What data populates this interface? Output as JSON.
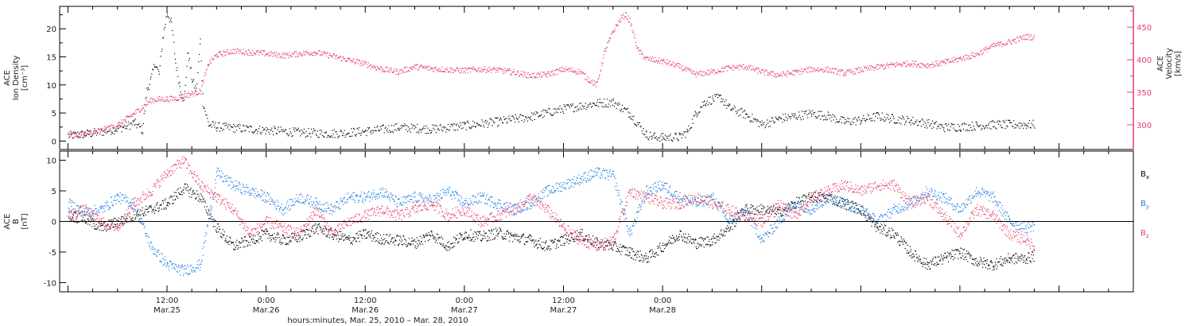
{
  "chart_data": [
    {
      "type": "scatter",
      "panel": "top",
      "ylabel_lines": [
        "ACE",
        "Ion Density",
        "[cm⁻³]"
      ],
      "y2label_lines": [
        "ACE",
        "Velocity",
        "[km/s]"
      ],
      "ylim": [
        -1.5,
        24
      ],
      "yticks": [
        0,
        5,
        10,
        15,
        20
      ],
      "y2lim": [
        262,
        482
      ],
      "y2ticks": [
        300,
        350,
        400,
        450
      ],
      "y2_color": "#e83e6c",
      "grid": false,
      "series": [
        {
          "color": "#000000",
          "axis": "left",
          "x_hours": [
            0,
            2,
            4,
            6,
            7,
            8,
            9,
            9.5,
            10,
            10.5,
            11,
            11.5,
            12,
            12.5,
            13,
            13.5,
            14,
            14.5,
            15,
            15.5,
            16,
            16.3,
            17,
            18,
            20,
            24,
            28,
            32,
            36,
            40,
            44,
            48,
            52,
            56,
            60,
            64,
            66,
            68,
            70,
            71,
            72,
            74,
            75,
            76,
            77,
            78,
            79,
            80,
            82,
            84,
            86,
            88,
            90,
            92,
            94,
            96,
            98,
            100,
            102,
            104,
            106,
            108,
            110,
            112,
            114,
            116,
            117
          ],
          "y": [
            1,
            1.3,
            1.7,
            2.3,
            2.7,
            3.3,
            2,
            9,
            11,
            14,
            12,
            19,
            23,
            21,
            14,
            10,
            7,
            16,
            11,
            9,
            18,
            7,
            3,
            2.6,
            2.4,
            2,
            1.6,
            1.4,
            1.8,
            2.5,
            2.2,
            2.8,
            3.5,
            4.4,
            5.8,
            6.8,
            7,
            5,
            1.2,
            0.8,
            0.7,
            0.8,
            1.8,
            5,
            7,
            7.5,
            7.8,
            6,
            4.8,
            3,
            4,
            4.5,
            5,
            4.5,
            3.5,
            3.8,
            4.5,
            4,
            3.7,
            3.2,
            2.5,
            2.6,
            2.8,
            3,
            3,
            3,
            3
          ]
        },
        {
          "color": "#e83e6c",
          "axis": "right",
          "x_hours": [
            0,
            2,
            4,
            6,
            8,
            10,
            11,
            12,
            13,
            14,
            16,
            17,
            18,
            20,
            22,
            24,
            26,
            28,
            30,
            32,
            34,
            36,
            38,
            40,
            42,
            44,
            46,
            48,
            50,
            52,
            54,
            56,
            58,
            60,
            62,
            63,
            64,
            65,
            65.5,
            66,
            67,
            67.5,
            68,
            69,
            70,
            72,
            74,
            76,
            78,
            80,
            82,
            84,
            86,
            88,
            90,
            92,
            94,
            96,
            98,
            100,
            102,
            104,
            106,
            108,
            110,
            112,
            114,
            116,
            117
          ],
          "y": [
            285,
            286,
            292,
            300,
            318,
            338,
            340,
            340,
            341,
            345,
            352,
            395,
            408,
            414,
            412,
            410,
            407,
            410,
            412,
            406,
            400,
            394,
            386,
            382,
            390,
            387,
            385,
            384,
            386,
            385,
            381,
            376,
            378,
            386,
            382,
            370,
            362,
            415,
            430,
            445,
            465,
            470,
            460,
            415,
            402,
            398,
            390,
            378,
            382,
            388,
            390,
            382,
            377,
            381,
            386,
            385,
            380,
            385,
            389,
            393,
            395,
            392,
            396,
            402,
            409,
            422,
            428,
            436,
            435
          ]
        }
      ]
    },
    {
      "type": "scatter",
      "panel": "bottom",
      "ylabel_lines": [
        "ACE",
        "B",
        "[nT]"
      ],
      "xlabel": "hours:minutes, Mar. 25, 2010 – Mar. 28, 2010",
      "ylim": [
        -11.5,
        11.5
      ],
      "yticks": [
        -10,
        -5,
        0,
        5,
        10
      ],
      "zero_line": true,
      "grid": false,
      "legend_position": "right",
      "series": [
        {
          "name": "Bx",
          "legend_text": "B",
          "legend_sub": "x",
          "color": "#000000",
          "x_hours": [
            0,
            2,
            4,
            6,
            8,
            10,
            12,
            14,
            16,
            18,
            20,
            22,
            24,
            26,
            28,
            30,
            32,
            34,
            36,
            38,
            40,
            42,
            44,
            46,
            48,
            50,
            52,
            54,
            56,
            58,
            60,
            62,
            64,
            66,
            68,
            70,
            72,
            74,
            76,
            78,
            80,
            82,
            84,
            86,
            88,
            90,
            92,
            94,
            96,
            98,
            100,
            102,
            104,
            106,
            108,
            110,
            112,
            114,
            116,
            117
          ],
          "y": [
            1,
            0.5,
            -1,
            0,
            1,
            2,
            3,
            5.5,
            4,
            -1,
            -4,
            -3,
            -2,
            -3,
            -2.5,
            -1,
            -2,
            -3,
            -2,
            -2.8,
            -3,
            -3.5,
            -2,
            -4,
            -2,
            -2.5,
            -1.8,
            -2.5,
            -3,
            -4,
            -3,
            -2,
            -3.5,
            -4,
            -5,
            -6,
            -4,
            -2,
            -3.5,
            -3,
            -1,
            2,
            2,
            1.5,
            3,
            4,
            4,
            3,
            2,
            -1,
            -2,
            -5,
            -7,
            -6,
            -5,
            -6.5,
            -7,
            -6,
            -6,
            -5.5
          ]
        },
        {
          "name": "By",
          "legend_text": "B",
          "legend_sub": "y",
          "color": "#1e7ee0",
          "x_hours": [
            0,
            2,
            4,
            6,
            8,
            10,
            12,
            14,
            16,
            18,
            20,
            22,
            24,
            26,
            28,
            30,
            32,
            34,
            36,
            38,
            40,
            42,
            44,
            46,
            48,
            50,
            52,
            54,
            56,
            58,
            60,
            62,
            64,
            66,
            68,
            70,
            72,
            74,
            76,
            78,
            80,
            82,
            84,
            86,
            88,
            90,
            92,
            94,
            96,
            98,
            100,
            102,
            104,
            106,
            108,
            110,
            112,
            114,
            116,
            117
          ],
          "y": [
            3,
            1.5,
            2,
            4,
            3,
            -4,
            -7,
            -8,
            -7,
            8,
            6,
            5,
            4,
            2,
            4,
            3,
            2,
            4,
            4,
            5,
            3,
            4,
            3.5,
            5,
            3,
            4,
            3,
            2,
            3,
            5,
            6,
            7,
            8,
            7.5,
            -2,
            5,
            6,
            4,
            3,
            4,
            0,
            2,
            -3,
            0,
            3,
            2,
            4,
            3,
            2,
            0,
            2,
            3,
            5,
            4,
            2,
            5,
            4,
            0,
            -1,
            -0.5
          ]
        },
        {
          "name": "Bz",
          "legend_text": "B",
          "legend_sub": "z",
          "color": "#e83e6c",
          "x_hours": [
            0,
            2,
            4,
            6,
            8,
            10,
            12,
            14,
            16,
            18,
            20,
            22,
            24,
            26,
            28,
            30,
            32,
            34,
            36,
            38,
            40,
            42,
            44,
            46,
            48,
            50,
            52,
            54,
            56,
            58,
            60,
            62,
            64,
            66,
            68,
            70,
            72,
            74,
            76,
            78,
            80,
            82,
            84,
            86,
            88,
            90,
            92,
            94,
            96,
            98,
            100,
            102,
            104,
            106,
            108,
            110,
            112,
            114,
            116,
            117
          ],
          "y": [
            1,
            2,
            0,
            -1,
            3,
            5,
            8,
            10,
            6,
            4,
            2,
            -2,
            0,
            -1,
            -2,
            2,
            -2,
            0,
            1,
            2,
            1,
            2,
            3,
            1,
            2,
            0,
            1,
            2,
            4,
            2,
            -1,
            -3,
            -4,
            -3,
            5,
            4,
            3,
            3,
            4,
            3,
            2,
            1,
            0,
            3,
            1,
            4,
            5,
            6,
            5,
            6,
            6,
            3,
            4,
            1,
            -2,
            2,
            1,
            -2,
            -3,
            -4
          ]
        }
      ]
    }
  ],
  "x_axis": {
    "range_hours": [
      -1,
      129
    ],
    "ticks": [
      {
        "hour": 12,
        "time": "12:00",
        "date": "Mar.25"
      },
      {
        "hour": 24,
        "time": "0:00",
        "date": "Mar.26"
      },
      {
        "hour": 36,
        "time": "12:00",
        "date": "Mar.26"
      },
      {
        "hour": 48,
        "time": "0:00",
        "date": "Mar.27"
      },
      {
        "hour": 60,
        "time": "12:00",
        "date": "Mar.27"
      },
      {
        "hour": 72,
        "time": "0:00",
        "date": "Mar.28"
      }
    ]
  }
}
